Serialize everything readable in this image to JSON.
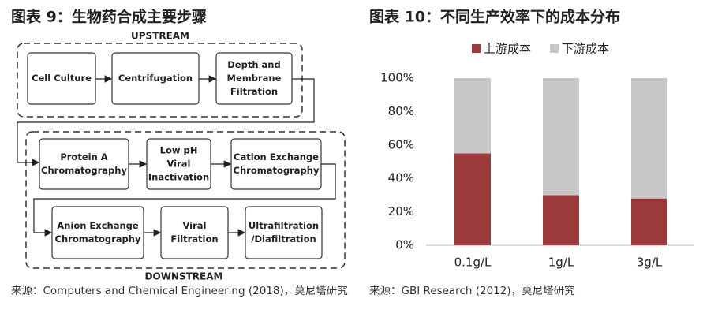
{
  "figure9": {
    "title": "图表 9：生物药合成主要步骤",
    "upstream_label": "UPSTREAM",
    "downstream_label": "DOWNSTREAM",
    "nodes": [
      {
        "label": [
          "Cell Culture"
        ]
      },
      {
        "label": [
          "Centrifugation"
        ]
      },
      {
        "label": [
          "Depth and",
          "Membrane",
          "Filtration"
        ]
      },
      {
        "label": [
          "Protein A",
          "Chromatography"
        ]
      },
      {
        "label": [
          "Low pH",
          "Viral",
          "Inactivation"
        ]
      },
      {
        "label": [
          "Cation Exchange",
          "Chromatography"
        ]
      },
      {
        "label": [
          "Anion Exchange",
          "Chromatography"
        ]
      },
      {
        "label": [
          "Viral",
          "Filtration"
        ]
      },
      {
        "label": [
          "Ultrafiltration",
          "/Diafiltration"
        ]
      }
    ],
    "source": "来源：Computers and Chemical Engineering (2018)，莫尼塔研究"
  },
  "chart_data": {
    "type": "bar",
    "stacked": true,
    "title": "图表 10：不同生产效率下的成本分布",
    "categories": [
      "0.1g/L",
      "1g/L",
      "3g/L"
    ],
    "series": [
      {
        "name": "上游成本",
        "color": "#9b3a3a",
        "values": [
          55,
          30,
          28
        ]
      },
      {
        "name": "下游成本",
        "color": "#c8c8c8",
        "values": [
          45,
          70,
          72
        ]
      }
    ],
    "ylim": [
      0,
      100
    ],
    "yticks": [
      {
        "value": 0,
        "label": "0%"
      },
      {
        "value": 20,
        "label": "20%"
      },
      {
        "value": 40,
        "label": "40%"
      },
      {
        "value": 60,
        "label": "60%"
      },
      {
        "value": 80,
        "label": "80%"
      },
      {
        "value": 100,
        "label": "100%"
      }
    ],
    "legend": "top"
  },
  "figure10_source": "来源：GBI Research (2012)，莫尼塔研究"
}
